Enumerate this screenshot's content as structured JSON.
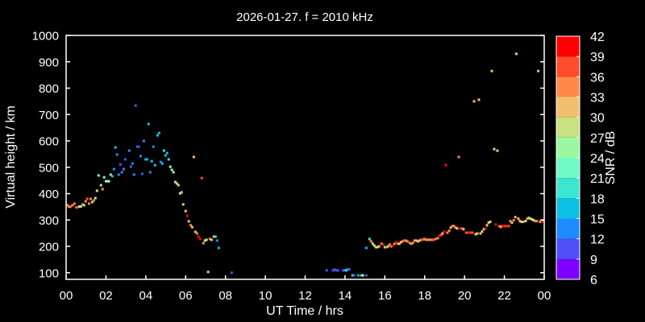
{
  "chart_data": {
    "type": "scatter",
    "title": "2026-01-27. f = 2010 kHz",
    "xlabel": "UT Time / hrs",
    "ylabel": "Virtual height / km",
    "xlim": [
      0,
      24
    ],
    "ylim": [
      75,
      1000
    ],
    "xticks": [
      "00",
      "02",
      "04",
      "06",
      "08",
      "10",
      "12",
      "14",
      "16",
      "18",
      "20",
      "22",
      "00"
    ],
    "yticks": [
      100,
      200,
      300,
      400,
      500,
      600,
      700,
      800,
      900,
      1000
    ],
    "grid": false,
    "colorbar": {
      "label": "SNR / dB",
      "ticks": [
        6,
        9,
        12,
        15,
        18,
        21,
        24,
        27,
        30,
        33,
        36,
        39,
        42
      ],
      "colors": [
        "#7f00ff",
        "#4f4ff8",
        "#1e8cff",
        "#0cc0e4",
        "#3ae6d2",
        "#6ffac4",
        "#9cf8a0",
        "#c8e282",
        "#f0c070",
        "#ff8a4a",
        "#ff4c2c",
        "#ff0000"
      ]
    },
    "points_format": [
      "time_hrs",
      "virtual_height_km",
      "snr_db"
    ],
    "points": [
      [
        0.05,
        357,
        34
      ],
      [
        0.13,
        351,
        34
      ],
      [
        0.21,
        350,
        34
      ],
      [
        0.32,
        356,
        34
      ],
      [
        0.42,
        362,
        34
      ],
      [
        0.5,
        348,
        37
      ],
      [
        0.57,
        348,
        37
      ],
      [
        0.66,
        351,
        25
      ],
      [
        0.74,
        351,
        25
      ],
      [
        0.82,
        359,
        34
      ],
      [
        0.9,
        356,
        28
      ],
      [
        0.98,
        371,
        34
      ],
      [
        1.06,
        380,
        37
      ],
      [
        1.15,
        362,
        34
      ],
      [
        1.23,
        380,
        34
      ],
      [
        1.31,
        368,
        28
      ],
      [
        1.39,
        374,
        34
      ],
      [
        1.47,
        383,
        28
      ],
      [
        1.55,
        411,
        28
      ],
      [
        1.63,
        469,
        25
      ],
      [
        1.75,
        432,
        28
      ],
      [
        1.83,
        417,
        34
      ],
      [
        1.91,
        462,
        22
      ],
      [
        2.0,
        447,
        25
      ],
      [
        2.07,
        447,
        25
      ],
      [
        2.15,
        447,
        25
      ],
      [
        2.24,
        472,
        25
      ],
      [
        2.32,
        466,
        16
      ],
      [
        2.4,
        493,
        13
      ],
      [
        2.48,
        575,
        16
      ],
      [
        2.56,
        548,
        13
      ],
      [
        2.64,
        472,
        13
      ],
      [
        2.72,
        511,
        10
      ],
      [
        2.8,
        481,
        13
      ],
      [
        2.89,
        493,
        13
      ],
      [
        2.97,
        530,
        10
      ],
      [
        3.17,
        563,
        13
      ],
      [
        3.25,
        502,
        10
      ],
      [
        3.33,
        514,
        13
      ],
      [
        3.41,
        472,
        13
      ],
      [
        3.49,
        734,
        10
      ],
      [
        3.57,
        578,
        10
      ],
      [
        3.65,
        578,
        10
      ],
      [
        3.74,
        542,
        13
      ],
      [
        3.82,
        475,
        10
      ],
      [
        3.9,
        600,
        13
      ],
      [
        3.98,
        530,
        13
      ],
      [
        4.06,
        530,
        16
      ],
      [
        4.14,
        664,
        16
      ],
      [
        4.22,
        481,
        13
      ],
      [
        4.3,
        523,
        16
      ],
      [
        4.38,
        578,
        13
      ],
      [
        4.46,
        508,
        16
      ],
      [
        4.59,
        621,
        16
      ],
      [
        4.67,
        630,
        16
      ],
      [
        4.75,
        520,
        13
      ],
      [
        4.83,
        514,
        16
      ],
      [
        4.91,
        563,
        19
      ],
      [
        4.99,
        545,
        16
      ],
      [
        5.07,
        554,
        16
      ],
      [
        5.15,
        530,
        19
      ],
      [
        5.23,
        502,
        25
      ],
      [
        5.31,
        490,
        25
      ],
      [
        5.39,
        481,
        25
      ],
      [
        5.48,
        444,
        25
      ],
      [
        5.56,
        438,
        28
      ],
      [
        5.64,
        432,
        31
      ],
      [
        5.72,
        401,
        25
      ],
      [
        5.8,
        405,
        31
      ],
      [
        5.88,
        359,
        31
      ],
      [
        6.0,
        334,
        31
      ],
      [
        6.08,
        316,
        40
      ],
      [
        6.16,
        295,
        31
      ],
      [
        6.25,
        280,
        34
      ],
      [
        6.33,
        273,
        31
      ],
      [
        6.41,
        539,
        31
      ],
      [
        6.49,
        255,
        31
      ],
      [
        6.57,
        249,
        34
      ],
      [
        6.65,
        237,
        40
      ],
      [
        6.73,
        228,
        40
      ],
      [
        6.81,
        459,
        37
      ],
      [
        6.89,
        212,
        34
      ],
      [
        6.97,
        222,
        25
      ],
      [
        7.05,
        225,
        28
      ],
      [
        7.13,
        103,
        28
      ],
      [
        7.22,
        228,
        34
      ],
      [
        7.3,
        225,
        31
      ],
      [
        7.42,
        237,
        31
      ],
      [
        7.5,
        237,
        19
      ],
      [
        7.58,
        222,
        13
      ],
      [
        7.66,
        194,
        16
      ],
      [
        8.31,
        100,
        10
      ],
      [
        13.08,
        109,
        10
      ],
      [
        13.4,
        109,
        10
      ],
      [
        13.48,
        112,
        10
      ],
      [
        13.56,
        109,
        10
      ],
      [
        13.65,
        109,
        10
      ],
      [
        13.9,
        109,
        10
      ],
      [
        13.97,
        109,
        10
      ],
      [
        14.05,
        109,
        19
      ],
      [
        14.13,
        112,
        16
      ],
      [
        14.22,
        113,
        10
      ],
      [
        14.38,
        90,
        19
      ],
      [
        14.46,
        90,
        10
      ],
      [
        14.66,
        90,
        16
      ],
      [
        14.82,
        90,
        19
      ],
      [
        14.9,
        90,
        28
      ],
      [
        15.07,
        90,
        10
      ],
      [
        15.07,
        194,
        16
      ],
      [
        15.23,
        228,
        19
      ],
      [
        15.31,
        219,
        34
      ],
      [
        15.39,
        210,
        28
      ],
      [
        15.47,
        203,
        28
      ],
      [
        15.55,
        197,
        28
      ],
      [
        15.63,
        197,
        28
      ],
      [
        15.71,
        200,
        31
      ],
      [
        15.84,
        210,
        34
      ],
      [
        15.92,
        207,
        40
      ],
      [
        16.0,
        197,
        25
      ],
      [
        16.08,
        197,
        34
      ],
      [
        16.16,
        200,
        28
      ],
      [
        16.24,
        207,
        34
      ],
      [
        16.32,
        200,
        34
      ],
      [
        16.4,
        203,
        40
      ],
      [
        16.49,
        210,
        34
      ],
      [
        16.57,
        216,
        40
      ],
      [
        16.65,
        210,
        34
      ],
      [
        16.73,
        210,
        31
      ],
      [
        16.81,
        216,
        31
      ],
      [
        16.89,
        219,
        34
      ],
      [
        16.97,
        222,
        37
      ],
      [
        17.05,
        222,
        34
      ],
      [
        17.13,
        219,
        34
      ],
      [
        17.25,
        213,
        34
      ],
      [
        17.33,
        210,
        34
      ],
      [
        17.41,
        213,
        34
      ],
      [
        17.49,
        222,
        34
      ],
      [
        17.57,
        222,
        31
      ],
      [
        17.66,
        219,
        28
      ],
      [
        17.74,
        222,
        31
      ],
      [
        17.82,
        225,
        34
      ],
      [
        17.9,
        225,
        37
      ],
      [
        17.98,
        228,
        34
      ],
      [
        18.06,
        225,
        34
      ],
      [
        18.14,
        225,
        34
      ],
      [
        18.22,
        225,
        34
      ],
      [
        18.3,
        225,
        34
      ],
      [
        18.38,
        225,
        34
      ],
      [
        18.46,
        225,
        37
      ],
      [
        18.54,
        228,
        34
      ],
      [
        18.66,
        231,
        34
      ],
      [
        18.74,
        240,
        40
      ],
      [
        18.82,
        243,
        37
      ],
      [
        18.9,
        249,
        31
      ],
      [
        18.98,
        256,
        40
      ],
      [
        19.06,
        508,
        40
      ],
      [
        19.14,
        252,
        34
      ],
      [
        19.23,
        259,
        34
      ],
      [
        19.31,
        271,
        31
      ],
      [
        19.39,
        277,
        34
      ],
      [
        19.47,
        277,
        34
      ],
      [
        19.55,
        271,
        34
      ],
      [
        19.63,
        268,
        31
      ],
      [
        19.71,
        539,
        34
      ],
      [
        19.79,
        268,
        40
      ],
      [
        19.87,
        268,
        37
      ],
      [
        19.95,
        265,
        31
      ],
      [
        20.08,
        252,
        37
      ],
      [
        20.16,
        252,
        37
      ],
      [
        20.24,
        252,
        40
      ],
      [
        20.32,
        252,
        37
      ],
      [
        20.4,
        252,
        37
      ],
      [
        20.48,
        750,
        31
      ],
      [
        20.56,
        246,
        28
      ],
      [
        20.64,
        249,
        31
      ],
      [
        20.72,
        756,
        31
      ],
      [
        20.8,
        249,
        31
      ],
      [
        20.88,
        256,
        31
      ],
      [
        20.97,
        265,
        28
      ],
      [
        21.05,
        268,
        40
      ],
      [
        21.13,
        280,
        31
      ],
      [
        21.21,
        290,
        31
      ],
      [
        21.29,
        293,
        28
      ],
      [
        21.37,
        865,
        31
      ],
      [
        21.49,
        569,
        28
      ],
      [
        21.57,
        283,
        40
      ],
      [
        21.65,
        563,
        28
      ],
      [
        21.74,
        277,
        37
      ],
      [
        21.82,
        274,
        31
      ],
      [
        21.9,
        277,
        37
      ],
      [
        21.98,
        277,
        40
      ],
      [
        22.06,
        277,
        37
      ],
      [
        22.14,
        277,
        40
      ],
      [
        22.22,
        277,
        37
      ],
      [
        22.3,
        296,
        34
      ],
      [
        22.38,
        290,
        31
      ],
      [
        22.47,
        299,
        34
      ],
      [
        22.55,
        311,
        31
      ],
      [
        22.6,
        930,
        28
      ],
      [
        22.7,
        305,
        31
      ],
      [
        22.78,
        296,
        31
      ],
      [
        22.86,
        293,
        31
      ],
      [
        22.94,
        293,
        31
      ],
      [
        23.07,
        296,
        28
      ],
      [
        23.15,
        305,
        34
      ],
      [
        23.23,
        308,
        28
      ],
      [
        23.31,
        305,
        31
      ],
      [
        23.39,
        302,
        28
      ],
      [
        23.47,
        299,
        28
      ],
      [
        23.55,
        296,
        34
      ],
      [
        23.63,
        296,
        34
      ],
      [
        23.7,
        865,
        31
      ],
      [
        23.8,
        293,
        31
      ],
      [
        23.88,
        293,
        40
      ],
      [
        23.96,
        299,
        34
      ]
    ]
  }
}
